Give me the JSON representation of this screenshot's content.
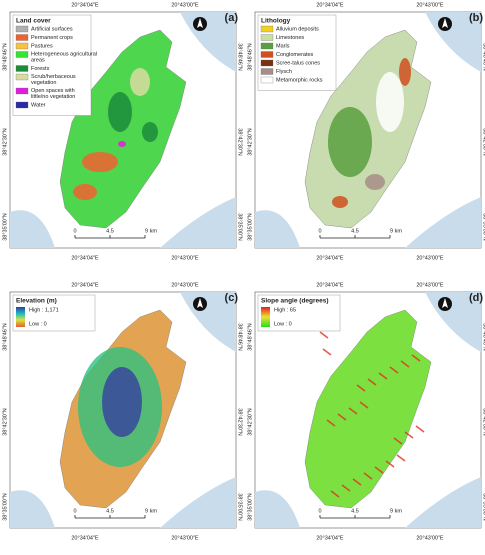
{
  "graticule": {
    "lon": [
      "20°34'04\"E",
      "20°43'00\"E"
    ],
    "lat": [
      "38°48'46\"N",
      "38°42'30\"N",
      "38°35'00\"N"
    ]
  },
  "scale_bar": {
    "ticks": [
      "0",
      "4.5",
      "9 km"
    ]
  },
  "panels": [
    {
      "letter": "(a)",
      "legend": {
        "title": "Land cover",
        "items": [
          {
            "label": "Artificial surfaces",
            "color": "#b0b0b0"
          },
          {
            "label": "Permanent crops",
            "color": "#f06030"
          },
          {
            "label": "Pastures",
            "color": "#f5c242"
          },
          {
            "label": "Heterogeneous agricultural areas",
            "color": "#33e633"
          },
          {
            "label": "Forests",
            "color": "#1a8c3a"
          },
          {
            "label": "Scrub/herbaceous vegetation",
            "color": "#d8dca0"
          },
          {
            "label": "Open spaces with little/no vegetation",
            "color": "#e01ee0"
          },
          {
            "label": "Water",
            "color": "#2a2aa8"
          }
        ]
      }
    },
    {
      "letter": "(b)",
      "legend": {
        "title": "Lithology",
        "items": [
          {
            "label": "Alluvium deposits",
            "color": "#f0d020"
          },
          {
            "label": "Limestones",
            "color": "#c8e0a0"
          },
          {
            "label": "Marls",
            "color": "#5aa040"
          },
          {
            "label": "Conglomerates",
            "color": "#d05020"
          },
          {
            "label": "Scree-talus cones",
            "color": "#7a3010"
          },
          {
            "label": "Flysch",
            "color": "#a88c88"
          },
          {
            "label": "Metamorphic rocks",
            "color": "#ffffff"
          }
        ]
      }
    },
    {
      "letter": "(c)",
      "legend": {
        "title": "Elevation (m)",
        "high": "High : 1,171",
        "low": "Low : 0"
      }
    },
    {
      "letter": "(d)",
      "legend": {
        "title": "Slope angle (degrees)",
        "high": "High : 65",
        "low": "Low : 0"
      }
    }
  ]
}
